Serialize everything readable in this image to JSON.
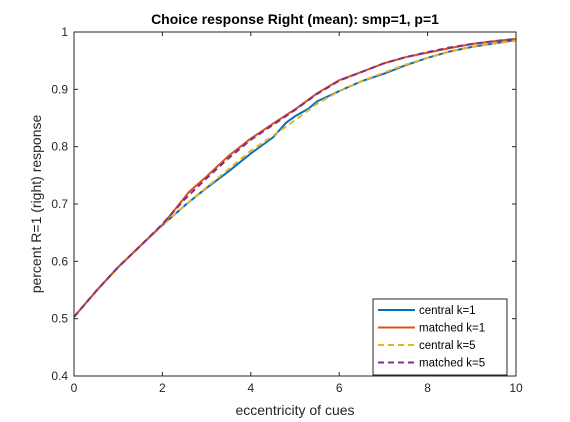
{
  "chart_data": {
    "type": "line",
    "title": "Choice response Right (mean): smp=1, p=1",
    "xlabel": "eccentricity of cues",
    "ylabel": "percent R=1 (right) response",
    "xlim": [
      0,
      10
    ],
    "ylim": [
      0.4,
      1
    ],
    "xticks": [
      "0",
      "2",
      "4",
      "6",
      "8",
      "10"
    ],
    "yticks": [
      "0.4",
      "0.5",
      "0.6",
      "0.7",
      "0.8",
      "0.9",
      "1"
    ],
    "grid": false,
    "legend_position": "bottom-right",
    "series": [
      {
        "name": "central k=1",
        "color": "#0072BD",
        "dash": "solid",
        "x": [
          0,
          0.5,
          1,
          1.5,
          2,
          2.5,
          3,
          3.5,
          4,
          4.5,
          4.8,
          5,
          5.3,
          5.5,
          6,
          6.5,
          7,
          7.5,
          8,
          8.5,
          9,
          9.5,
          10
        ],
        "y": [
          0.503,
          0.548,
          0.59,
          0.627,
          0.663,
          0.697,
          0.728,
          0.757,
          0.788,
          0.816,
          0.842,
          0.853,
          0.866,
          0.879,
          0.897,
          0.914,
          0.927,
          0.942,
          0.955,
          0.966,
          0.974,
          0.98,
          0.986
        ]
      },
      {
        "name": "matched k=1",
        "color": "#D95319",
        "dash": "solid",
        "x": [
          0,
          0.5,
          1,
          1.5,
          2,
          2.3,
          2.6,
          3,
          3.5,
          4,
          4.5,
          5,
          5.5,
          6,
          6.5,
          7,
          7.5,
          8,
          8.5,
          9,
          9.5,
          10
        ],
        "y": [
          0.503,
          0.548,
          0.59,
          0.627,
          0.664,
          0.692,
          0.721,
          0.748,
          0.784,
          0.814,
          0.84,
          0.865,
          0.893,
          0.916,
          0.93,
          0.945,
          0.956,
          0.964,
          0.972,
          0.979,
          0.984,
          0.988
        ]
      },
      {
        "name": "central k=5",
        "color": "#EDB120",
        "dash": "dashed",
        "x": [
          0,
          0.5,
          1,
          1.5,
          2,
          2.5,
          3,
          3.5,
          4,
          4.5,
          5,
          5.5,
          6,
          6.5,
          7,
          7.5,
          8,
          8.5,
          9,
          9.5,
          10
        ],
        "y": [
          0.503,
          0.548,
          0.59,
          0.627,
          0.663,
          0.697,
          0.729,
          0.761,
          0.793,
          0.819,
          0.846,
          0.875,
          0.897,
          0.914,
          0.929,
          0.943,
          0.955,
          0.966,
          0.974,
          0.98,
          0.985
        ]
      },
      {
        "name": "matched k=5",
        "color": "#7E2F8E",
        "dash": "dashed",
        "x": [
          0,
          0.5,
          1,
          1.5,
          2,
          2.5,
          3,
          3.5,
          4,
          4.5,
          5,
          5.5,
          6,
          6.5,
          7,
          7.5,
          8,
          8.5,
          9,
          9.5,
          10
        ],
        "y": [
          0.503,
          0.548,
          0.59,
          0.627,
          0.665,
          0.708,
          0.745,
          0.78,
          0.812,
          0.838,
          0.864,
          0.892,
          0.915,
          0.93,
          0.945,
          0.956,
          0.965,
          0.973,
          0.979,
          0.984,
          0.988
        ]
      }
    ]
  }
}
